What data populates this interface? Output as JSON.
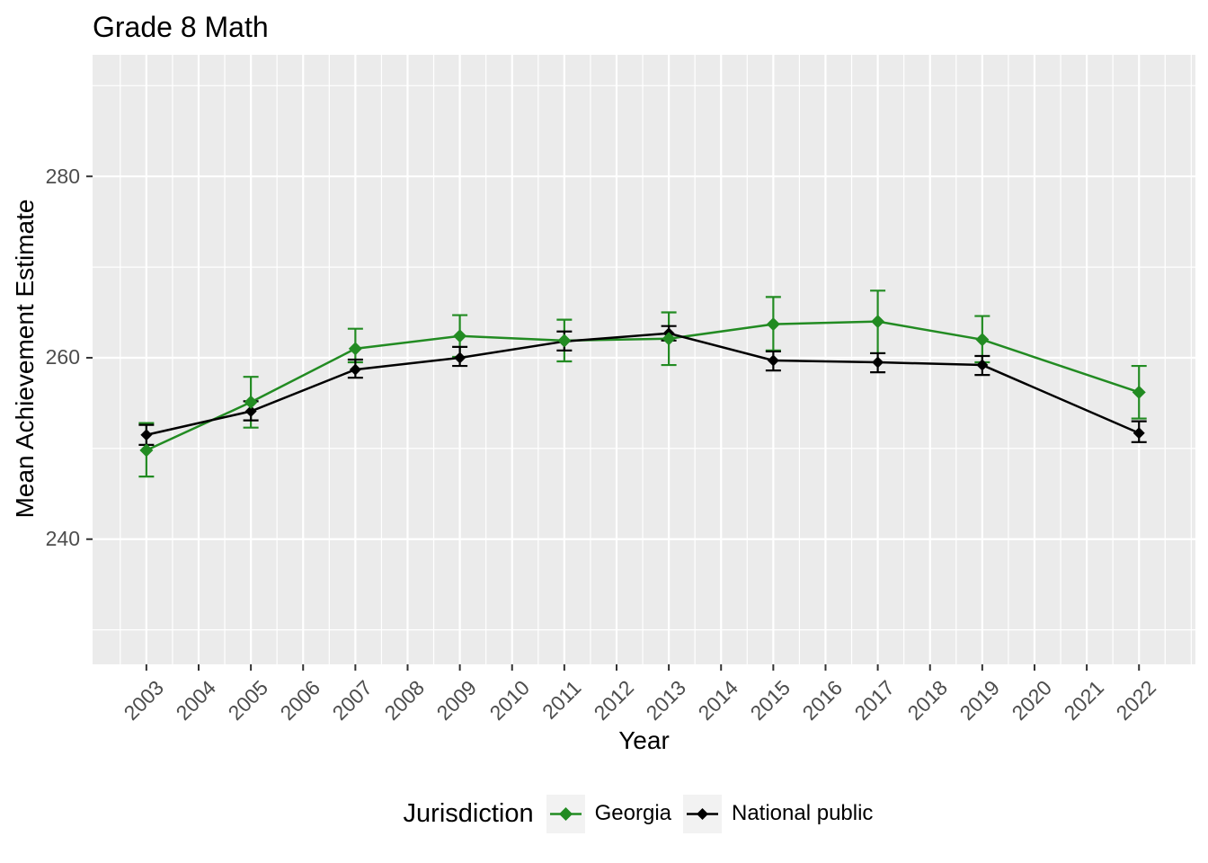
{
  "title": "Grade 8 Math",
  "axes": {
    "x": {
      "label": "Year"
    },
    "y": {
      "label": "Mean Achievement Estimate"
    }
  },
  "legend": {
    "title": "Jurisdiction"
  },
  "colors": {
    "georgia_green": "#228B22",
    "national_black": "#000000",
    "panel_background": "#EBEBEB",
    "gridline": "#FFFFFF",
    "axis_text": "#4D4D4D",
    "tick_mark": "#333333",
    "legend_key_background": "#F2F2F2"
  },
  "chart_data": {
    "type": "line",
    "title": "Grade 8 Math",
    "xlabel": "Year",
    "ylabel": "Mean Achievement Estimate",
    "legend_title": "Jurisdiction",
    "legend_position": "bottom",
    "grid": true,
    "error_bars": true,
    "point_shape": "diamond",
    "x_axis_ticks": [
      2003,
      2004,
      2005,
      2006,
      2007,
      2008,
      2009,
      2010,
      2011,
      2012,
      2013,
      2014,
      2015,
      2016,
      2017,
      2018,
      2019,
      2020,
      2021,
      2022
    ],
    "y_axis_ticks": [
      240,
      260,
      280
    ],
    "y_minor_gridlines": [
      230,
      250,
      270,
      290
    ],
    "xlim": [
      2001.97,
      2023.08
    ],
    "ylim": [
      226.2,
      293.4
    ],
    "x": [
      2003,
      2005,
      2007,
      2009,
      2011,
      2013,
      2015,
      2017,
      2019,
      2022
    ],
    "series": [
      {
        "name": "Georgia",
        "color": "#228B22",
        "values": [
          249.8,
          255.1,
          261.0,
          262.4,
          261.9,
          262.1,
          263.7,
          264.0,
          262.0,
          256.2
        ],
        "ci_low": [
          246.9,
          252.3,
          259.5,
          260.1,
          259.6,
          259.2,
          260.8,
          260.5,
          259.5,
          253.3
        ],
        "ci_high": [
          252.8,
          257.9,
          263.2,
          264.7,
          264.2,
          265.0,
          266.7,
          267.4,
          264.6,
          259.1
        ]
      },
      {
        "name": "National public",
        "color": "#000000",
        "values": [
          251.5,
          254.1,
          258.7,
          260.0,
          261.8,
          262.7,
          259.7,
          259.5,
          259.2,
          251.7
        ],
        "ci_low": [
          250.4,
          253.1,
          257.8,
          259.1,
          260.8,
          261.9,
          258.6,
          258.4,
          258.1,
          250.7
        ],
        "ci_high": [
          252.6,
          255.2,
          259.8,
          261.2,
          262.9,
          263.5,
          260.7,
          260.5,
          260.2,
          253.0
        ]
      }
    ]
  }
}
